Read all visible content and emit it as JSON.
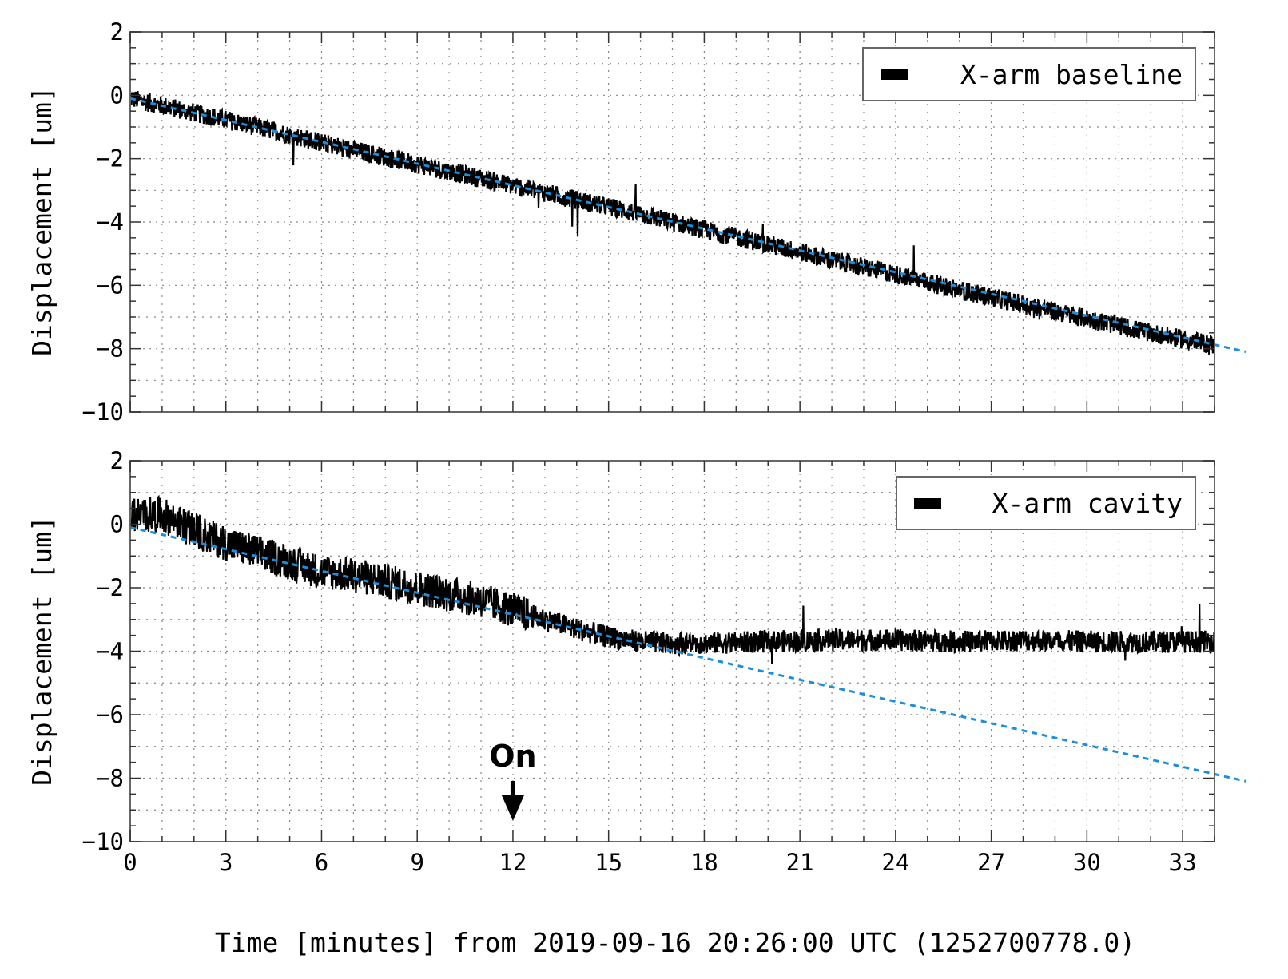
{
  "chart_data": [
    {
      "type": "line",
      "panel": "top",
      "ylabel": "Displacement [um]",
      "xlim": [
        0,
        34
      ],
      "ylim": [
        -10,
        2
      ],
      "x_ticks": [
        0,
        3,
        6,
        9,
        12,
        15,
        18,
        21,
        24,
        27,
        30,
        33
      ],
      "y_ticks": [
        2,
        0,
        -2,
        -4,
        -6,
        -8,
        -10
      ],
      "y_tick_labels": [
        "2",
        "0",
        "−2",
        "−4",
        "−6",
        "−8",
        "−10"
      ],
      "grid": true,
      "legend_position": "top-right",
      "series": [
        {
          "name": "X-arm baseline",
          "color": "#000000",
          "x": [
            0,
            2,
            4,
            6,
            8,
            10,
            12,
            14,
            16,
            18,
            20,
            22,
            24,
            26,
            28,
            30,
            32,
            34
          ],
          "y": [
            -0.1,
            -0.55,
            -1.0,
            -1.5,
            -1.95,
            -2.4,
            -2.85,
            -3.3,
            -3.75,
            -4.25,
            -4.7,
            -5.2,
            -5.65,
            -6.15,
            -6.6,
            -7.05,
            -7.5,
            -7.9
          ],
          "noise_amplitude": 0.3
        },
        {
          "name": "",
          "style": "dashed",
          "color": "#1a8fe0",
          "x": [
            0,
            35
          ],
          "y": [
            -0.1,
            -8.1
          ]
        }
      ]
    },
    {
      "type": "line",
      "panel": "bottom",
      "ylabel": "Displacement [um]",
      "xlabel": "Time [minutes] from 2019-09-16 20:26:00 UTC (1252700778.0)",
      "xlim": [
        0,
        34
      ],
      "ylim": [
        -10,
        2
      ],
      "x_ticks": [
        0,
        3,
        6,
        9,
        12,
        15,
        18,
        21,
        24,
        27,
        30,
        33
      ],
      "x_tick_labels": [
        "0",
        "3",
        "6",
        "9",
        "12",
        "15",
        "18",
        "21",
        "24",
        "27",
        "30",
        "33"
      ],
      "y_ticks": [
        2,
        0,
        -2,
        -4,
        -6,
        -8,
        -10
      ],
      "y_tick_labels": [
        "2",
        "0",
        "−2",
        "−4",
        "−6",
        "−8",
        "−10"
      ],
      "grid": true,
      "legend_position": "top-right",
      "annotation": {
        "text": "On",
        "x": 12,
        "arrow": "down"
      },
      "series": [
        {
          "name": "X-arm cavity",
          "color": "#000000",
          "x": [
            0,
            1,
            2,
            3,
            4,
            5,
            6,
            7,
            8,
            9,
            10,
            11,
            12,
            13,
            14,
            15,
            16,
            17,
            18,
            20,
            22,
            24,
            26,
            28,
            30,
            32,
            34
          ],
          "y": [
            0.3,
            0.3,
            -0.2,
            -0.6,
            -0.9,
            -1.2,
            -1.5,
            -1.6,
            -1.8,
            -2.0,
            -2.2,
            -2.4,
            -2.7,
            -3.0,
            -3.3,
            -3.55,
            -3.7,
            -3.75,
            -3.75,
            -3.7,
            -3.65,
            -3.65,
            -3.7,
            -3.65,
            -3.7,
            -3.7,
            -3.7
          ],
          "noise_amplitude": 0.35
        },
        {
          "name": "",
          "style": "dashed",
          "color": "#1a8fe0",
          "x": [
            0,
            35
          ],
          "y": [
            -0.1,
            -8.1
          ]
        }
      ]
    }
  ]
}
